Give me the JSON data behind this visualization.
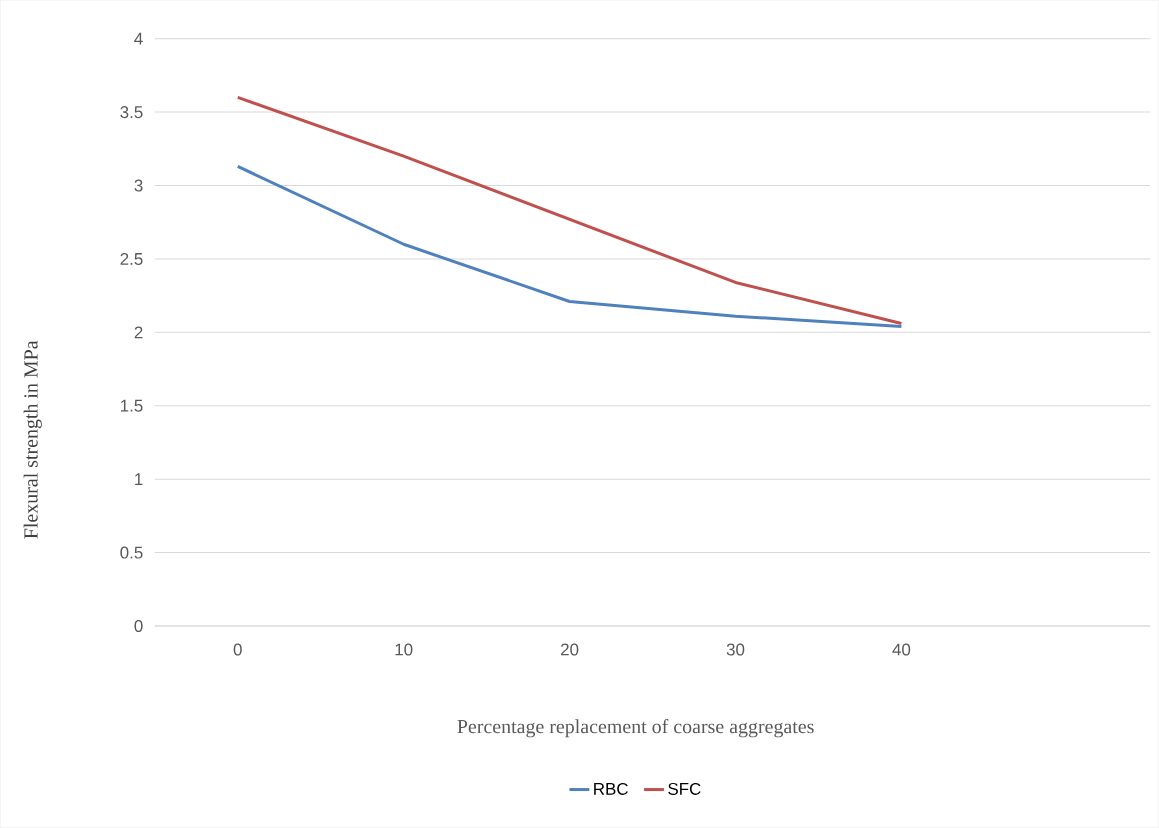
{
  "chart_data": {
    "type": "line",
    "xlabel": "Percentage replacement of coarse aggregates",
    "ylabel": "Flexural strength in MPa",
    "categories": [
      "0",
      "10",
      "20",
      "30",
      "40",
      null
    ],
    "series": [
      {
        "name": "RBC",
        "color": "#4f81bd",
        "values": [
          3.13,
          2.6,
          2.21,
          2.11,
          2.04,
          null
        ]
      },
      {
        "name": "SFC",
        "color": "#c0504d",
        "values": [
          3.6,
          3.2,
          2.77,
          2.34,
          2.06,
          null
        ]
      }
    ],
    "ylim": [
      0,
      4
    ],
    "yticks": [
      0,
      0.5,
      1,
      1.5,
      2,
      2.5,
      3,
      3.5,
      4
    ],
    "grid": "y",
    "legend": "bottom"
  }
}
